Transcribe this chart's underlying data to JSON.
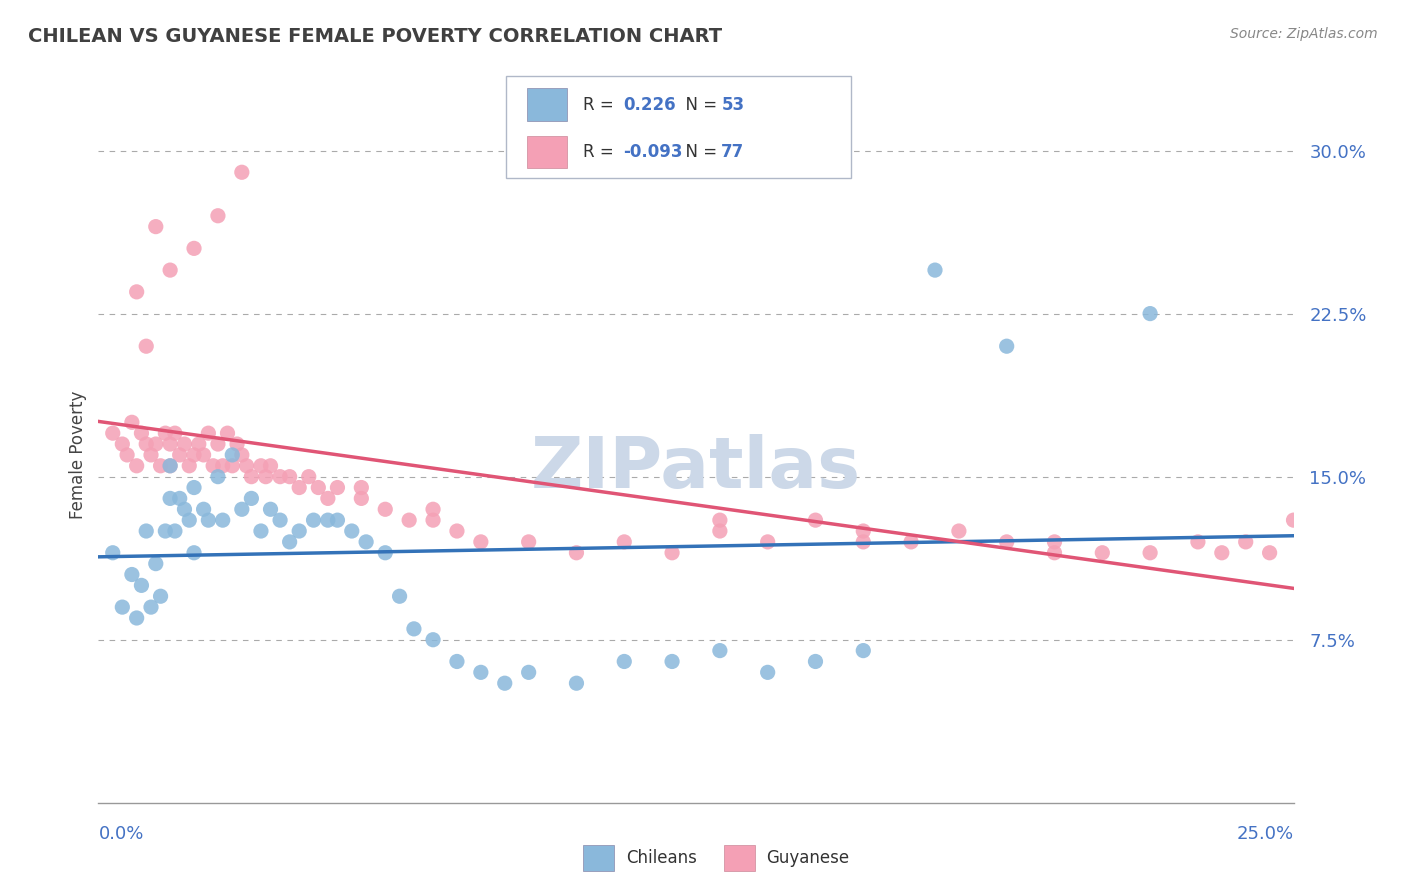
{
  "title": "CHILEAN VS GUYANESE FEMALE POVERTY CORRELATION CHART",
  "source": "Source: ZipAtlas.com",
  "ylabel": "Female Poverty",
  "xmin": 0.0,
  "xmax": 0.25,
  "ymin": 0.0,
  "ymax": 0.32,
  "yticks": [
    0.075,
    0.15,
    0.225,
    0.3
  ],
  "ytick_labels": [
    "7.5%",
    "15.0%",
    "22.5%",
    "30.0%"
  ],
  "legend_r_chilean": "0.226",
  "legend_n_chilean": "53",
  "legend_r_guyanese": "-0.093",
  "legend_n_guyanese": "77",
  "chilean_color": "#8ab8db",
  "guyanese_color": "#f4a0b5",
  "trendline_chilean_color": "#3372b8",
  "trendline_guyanese_color": "#e05575",
  "background_color": "#ffffff",
  "watermark_color": "#ccd8e8",
  "chilean_x": [
    0.003,
    0.005,
    0.007,
    0.008,
    0.009,
    0.01,
    0.011,
    0.012,
    0.013,
    0.014,
    0.015,
    0.015,
    0.016,
    0.017,
    0.018,
    0.019,
    0.02,
    0.02,
    0.022,
    0.023,
    0.025,
    0.026,
    0.028,
    0.03,
    0.032,
    0.034,
    0.036,
    0.038,
    0.04,
    0.042,
    0.045,
    0.048,
    0.05,
    0.053,
    0.056,
    0.06,
    0.063,
    0.066,
    0.07,
    0.075,
    0.08,
    0.085,
    0.09,
    0.1,
    0.11,
    0.12,
    0.13,
    0.14,
    0.15,
    0.16,
    0.175,
    0.19,
    0.22
  ],
  "chilean_y": [
    0.115,
    0.09,
    0.105,
    0.085,
    0.1,
    0.125,
    0.09,
    0.11,
    0.095,
    0.125,
    0.14,
    0.155,
    0.125,
    0.14,
    0.135,
    0.13,
    0.145,
    0.115,
    0.135,
    0.13,
    0.15,
    0.13,
    0.16,
    0.135,
    0.14,
    0.125,
    0.135,
    0.13,
    0.12,
    0.125,
    0.13,
    0.13,
    0.13,
    0.125,
    0.12,
    0.115,
    0.095,
    0.08,
    0.075,
    0.065,
    0.06,
    0.055,
    0.06,
    0.055,
    0.065,
    0.065,
    0.07,
    0.06,
    0.065,
    0.07,
    0.245,
    0.21,
    0.225
  ],
  "guyanese_x": [
    0.003,
    0.005,
    0.006,
    0.007,
    0.008,
    0.009,
    0.01,
    0.011,
    0.012,
    0.013,
    0.014,
    0.015,
    0.015,
    0.016,
    0.017,
    0.018,
    0.019,
    0.02,
    0.021,
    0.022,
    0.023,
    0.024,
    0.025,
    0.026,
    0.027,
    0.028,
    0.029,
    0.03,
    0.031,
    0.032,
    0.034,
    0.035,
    0.036,
    0.038,
    0.04,
    0.042,
    0.044,
    0.046,
    0.048,
    0.05,
    0.055,
    0.06,
    0.065,
    0.07,
    0.075,
    0.08,
    0.09,
    0.1,
    0.11,
    0.12,
    0.13,
    0.14,
    0.15,
    0.16,
    0.17,
    0.18,
    0.19,
    0.2,
    0.21,
    0.22,
    0.23,
    0.235,
    0.24,
    0.245,
    0.25,
    0.03,
    0.025,
    0.02,
    0.015,
    0.012,
    0.01,
    0.008,
    0.055,
    0.07,
    0.13,
    0.16,
    0.2
  ],
  "guyanese_y": [
    0.17,
    0.165,
    0.16,
    0.175,
    0.155,
    0.17,
    0.165,
    0.16,
    0.165,
    0.155,
    0.17,
    0.165,
    0.155,
    0.17,
    0.16,
    0.165,
    0.155,
    0.16,
    0.165,
    0.16,
    0.17,
    0.155,
    0.165,
    0.155,
    0.17,
    0.155,
    0.165,
    0.16,
    0.155,
    0.15,
    0.155,
    0.15,
    0.155,
    0.15,
    0.15,
    0.145,
    0.15,
    0.145,
    0.14,
    0.145,
    0.14,
    0.135,
    0.13,
    0.13,
    0.125,
    0.12,
    0.12,
    0.115,
    0.12,
    0.115,
    0.13,
    0.12,
    0.13,
    0.125,
    0.12,
    0.125,
    0.12,
    0.12,
    0.115,
    0.115,
    0.12,
    0.115,
    0.12,
    0.115,
    0.13,
    0.29,
    0.27,
    0.255,
    0.245,
    0.265,
    0.21,
    0.235,
    0.145,
    0.135,
    0.125,
    0.12,
    0.115
  ]
}
